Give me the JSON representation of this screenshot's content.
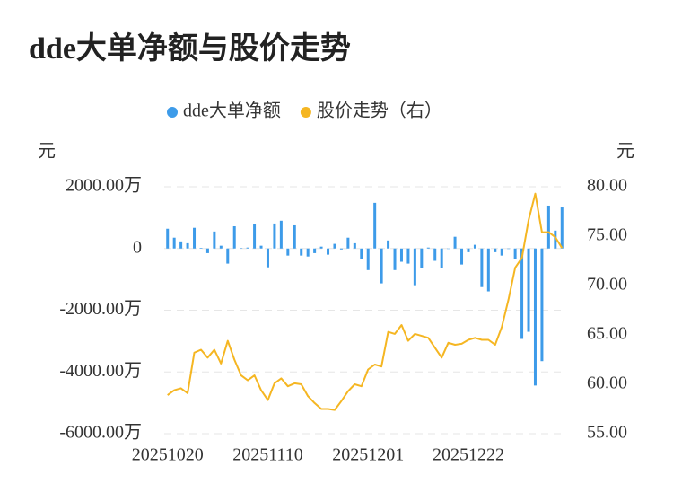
{
  "chart_data": {
    "type": "bar",
    "title": "dde大单净额与股价走势",
    "ylabel": "元",
    "y2label": "元",
    "categories": [
      "20251020",
      null,
      null,
      null,
      null,
      null,
      null,
      null,
      null,
      null,
      null,
      null,
      null,
      null,
      null,
      "20251110",
      null,
      null,
      null,
      null,
      null,
      null,
      null,
      null,
      null,
      null,
      null,
      null,
      null,
      null,
      "20251201",
      null,
      null,
      null,
      null,
      null,
      null,
      null,
      null,
      null,
      null,
      null,
      null,
      null,
      null,
      "20251222",
      null,
      null,
      null,
      null,
      null,
      null,
      null,
      null,
      null,
      null,
      null,
      null,
      null,
      null
    ],
    "series": [
      {
        "name": "dde大单净额",
        "type": "bar",
        "color": "#3d9be9",
        "values": [
          640,
          350,
          230,
          170,
          670,
          20,
          -150,
          550,
          90,
          -490,
          720,
          10,
          30,
          780,
          90,
          -610,
          810,
          900,
          -230,
          750,
          -230,
          -260,
          -150,
          60,
          -200,
          150,
          -30,
          350,
          170,
          -350,
          -700,
          1480,
          -1130,
          260,
          -700,
          -430,
          -490,
          -1190,
          -640,
          30,
          -400,
          -640,
          -10,
          380,
          -520,
          -120,
          120,
          -1250,
          -1390,
          -120,
          -230,
          -10,
          -350,
          -2930,
          -2700,
          -4440,
          -3650,
          1390,
          580,
          1330
        ]
      },
      {
        "name": "股价走势（右）",
        "type": "line",
        "axis": "y2",
        "color": "#f5b622",
        "values": [
          58.9,
          59.4,
          59.6,
          59.1,
          63.2,
          63.5,
          62.7,
          63.5,
          62.1,
          64.4,
          62.5,
          60.9,
          60.4,
          60.9,
          59.4,
          58.4,
          60.1,
          60.6,
          59.8,
          60.1,
          60.0,
          58.8,
          58.1,
          57.5,
          57.5,
          57.4,
          58.3,
          59.3,
          60.0,
          59.8,
          61.5,
          62.0,
          61.8,
          65.3,
          65.1,
          66.0,
          64.4,
          65.1,
          64.9,
          64.7,
          63.7,
          62.7,
          64.2,
          64.0,
          64.1,
          64.5,
          64.7,
          64.5,
          64.5,
          64.0,
          65.8,
          68.6,
          71.8,
          72.8,
          76.6,
          79.3,
          75.4,
          75.4,
          74.9,
          73.8
        ]
      }
    ],
    "ylim": [
      -6000,
      2000
    ],
    "yticks": [
      {
        "value": 2000,
        "label": "2000.00万"
      },
      0,
      {
        "value": -2000,
        "label": "-2000.00万"
      },
      {
        "value": -4000,
        "label": "-4000.00万"
      },
      {
        "value": -6000,
        "label": "-6000.00万"
      }
    ],
    "y2lim": [
      55,
      80
    ],
    "y2ticks": [
      {
        "value": 80,
        "label": "80.00"
      },
      {
        "value": 75,
        "label": "75.00"
      },
      {
        "value": 70,
        "label": "70.00"
      },
      {
        "value": 65,
        "label": "65.00"
      },
      {
        "value": 60,
        "label": "60.00"
      },
      {
        "value": 55,
        "label": "55.00"
      }
    ],
    "grid": true,
    "legend": "top"
  }
}
